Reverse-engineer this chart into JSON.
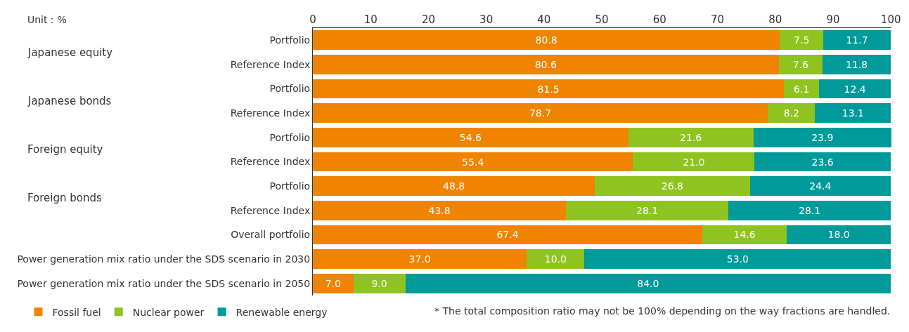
{
  "chart_data": {
    "type": "bar",
    "orientation": "horizontal",
    "stacked": true,
    "categories": [
      "Portfolio",
      "Reference Index",
      "Portfolio",
      "Reference Index",
      "Portfolio",
      "Reference Index",
      "Portfolio",
      "Reference Index",
      "Overall portfolio",
      "Power generation mix ratio under the SDS scenario in 2030",
      "Power generation mix ratio under the SDS scenario in 2050"
    ],
    "series": [
      {
        "name": "Fossil fuel",
        "color": "#f08300",
        "values": [
          80.8,
          80.6,
          81.5,
          78.7,
          54.6,
          55.4,
          48.8,
          43.8,
          67.4,
          37.0,
          7.0
        ],
        "value_labels": [
          "80.8",
          "80.6",
          "81.5",
          "78.7",
          "54.6",
          "55.4",
          "48.8",
          "43.8",
          "67.4",
          "37.0",
          "7.0"
        ]
      },
      {
        "name": "Nuclear power",
        "color": "#8fc31f",
        "values": [
          7.5,
          7.6,
          6.1,
          8.2,
          21.6,
          21.0,
          26.8,
          28.1,
          14.6,
          10.0,
          9.0
        ],
        "value_labels": [
          "7.5",
          "7.6",
          "6.1",
          "8.2",
          "21.6",
          "21.0",
          "26.8",
          "28.1",
          "14.6",
          "10.0",
          "9.0"
        ]
      },
      {
        "name": "Renewable energy",
        "color": "#009a9a",
        "values": [
          11.7,
          11.8,
          12.4,
          13.1,
          23.9,
          23.6,
          24.4,
          28.1,
          18.0,
          53.0,
          84.0
        ],
        "value_labels": [
          "11.7",
          "11.8",
          "12.4",
          "13.1",
          "23.9",
          "23.6",
          "24.4",
          "28.1",
          "18.0",
          "53.0",
          "84.0"
        ]
      }
    ],
    "xlim": [
      0,
      100.1
    ],
    "xticks": [
      0,
      10,
      20,
      30,
      40,
      50,
      60,
      70,
      80,
      90,
      100
    ],
    "legend": "bottom left",
    "annotations": [
      "Japanese equity",
      "Japanese bonds",
      "Foreign equity",
      "Foreign bonds",
      "Unit：%",
      "* The total composition ratio may not be 100% depending on the way fractions are handled."
    ]
  }
}
